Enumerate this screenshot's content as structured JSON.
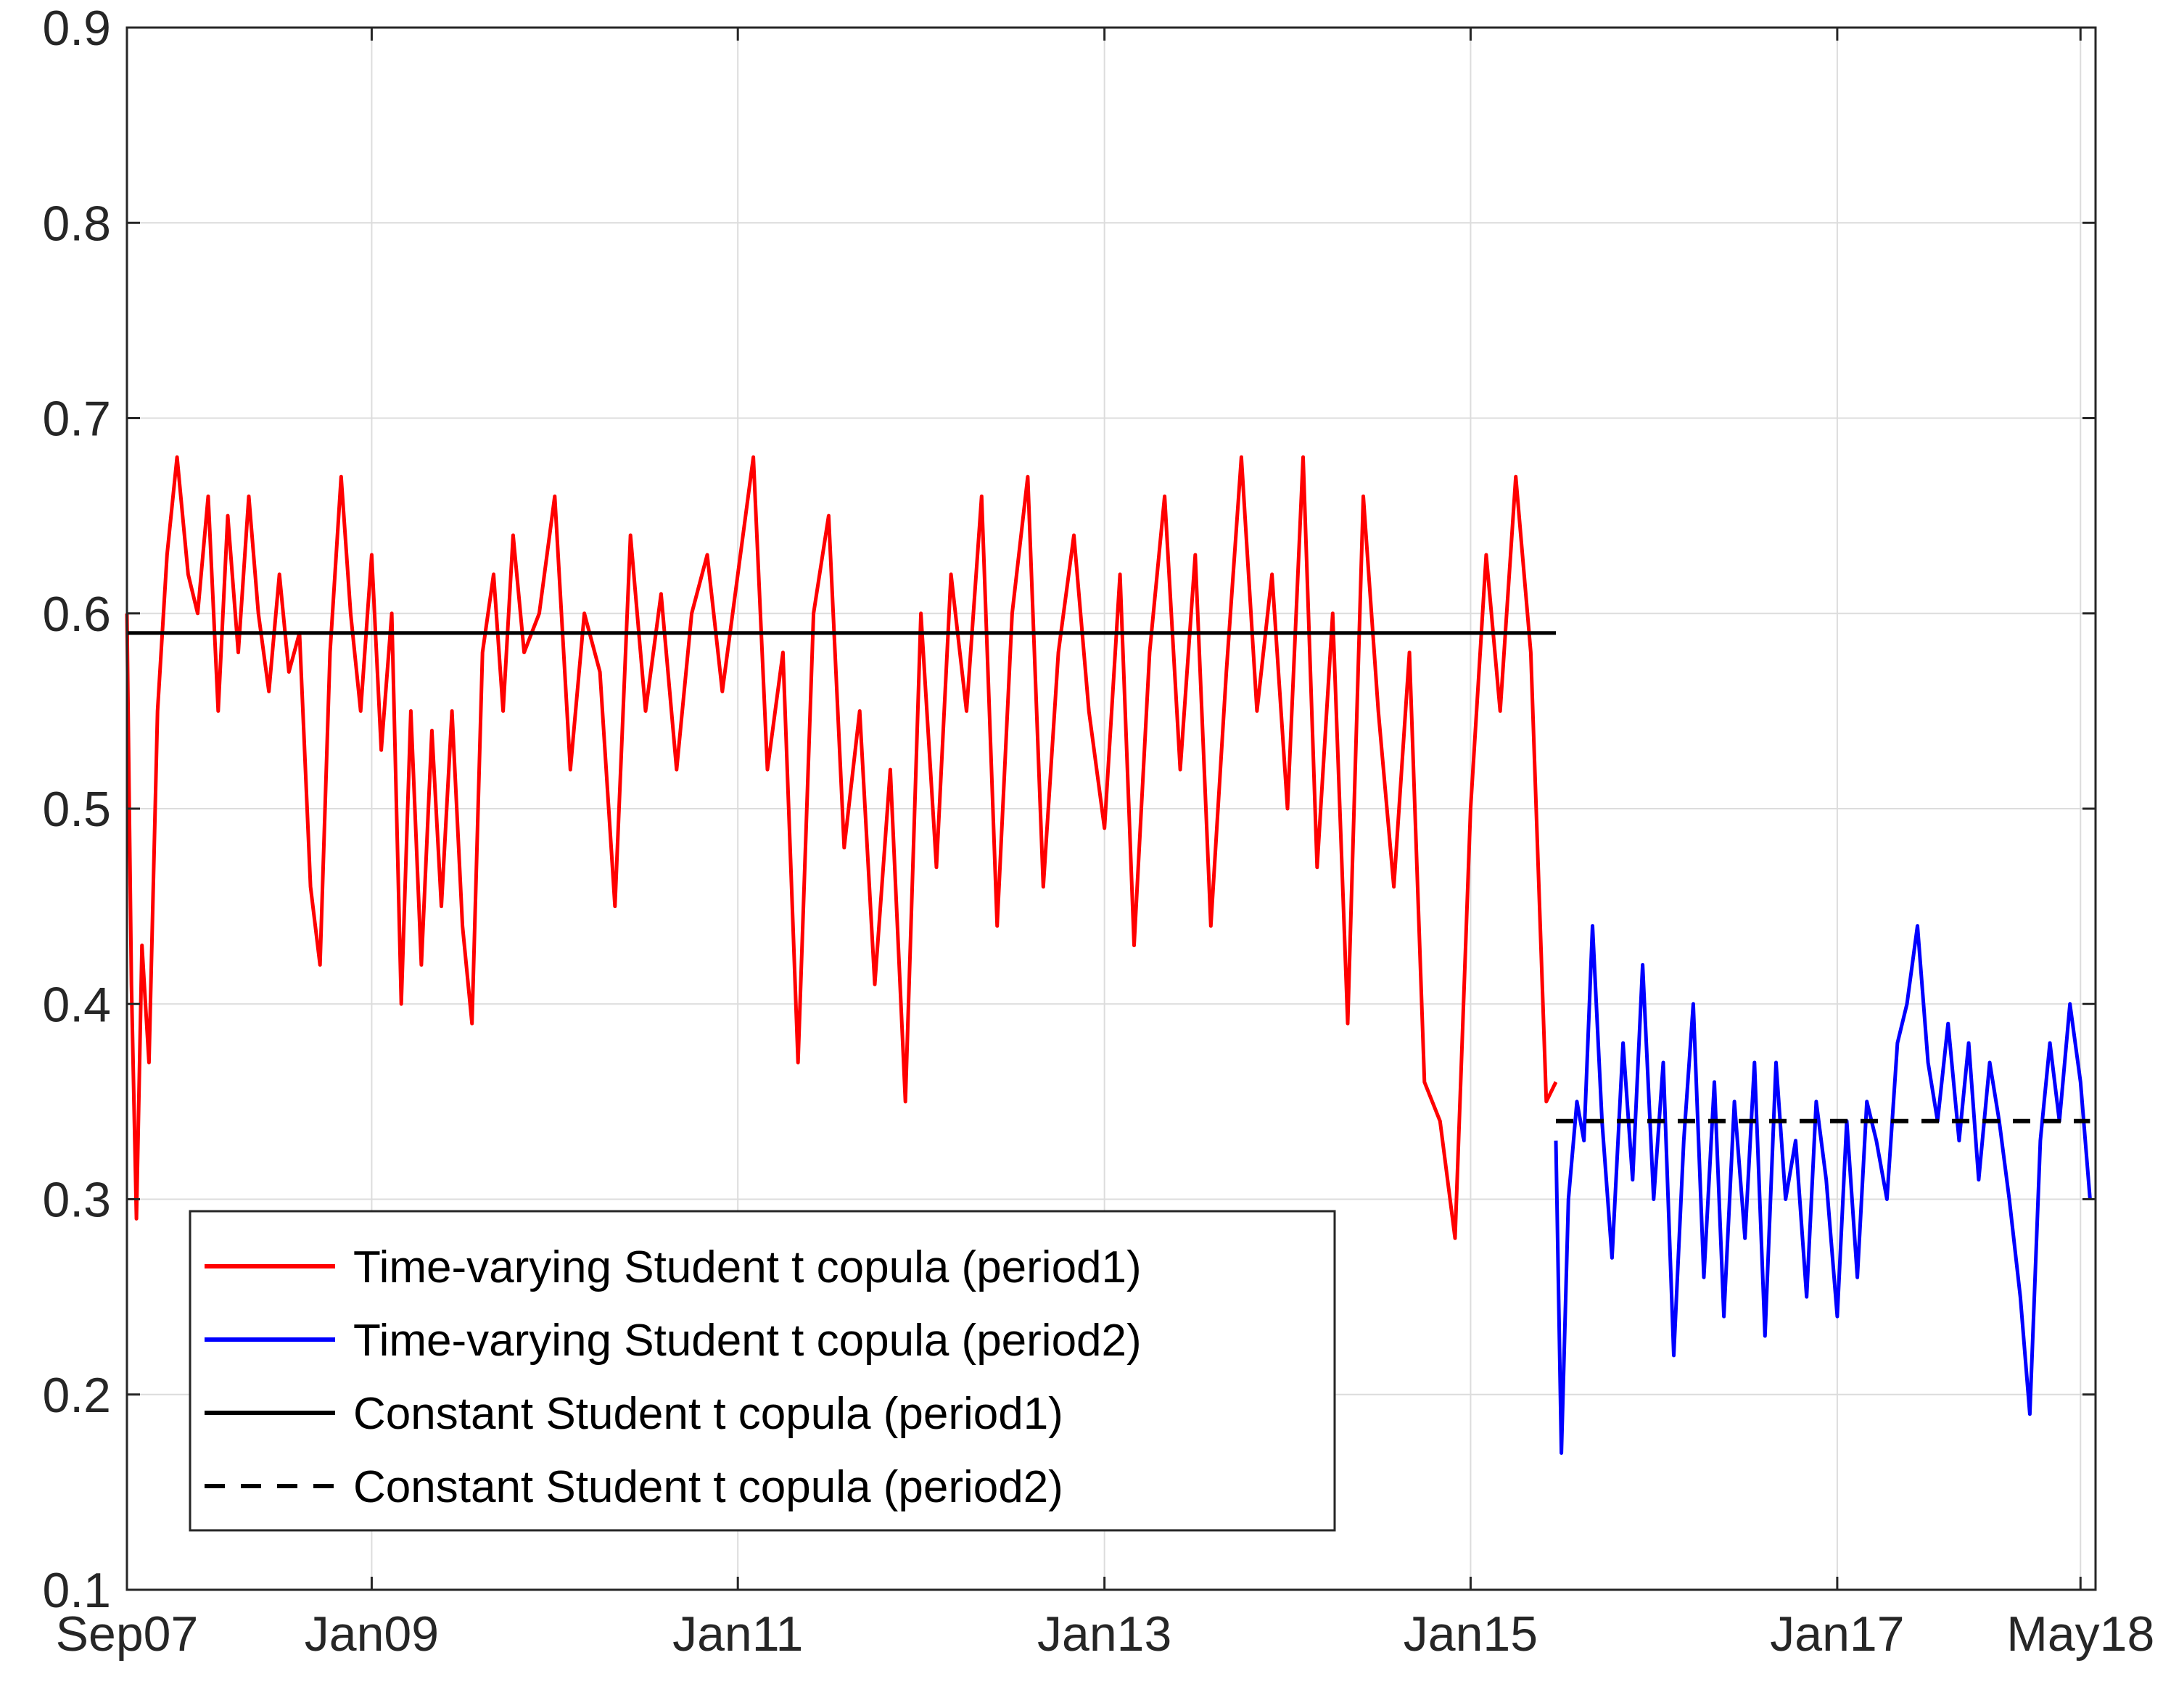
{
  "chart_data": {
    "type": "line",
    "title": "",
    "xlabel": "",
    "ylabel": "",
    "xlim": [
      "2007-09-01",
      "2018-05-31"
    ],
    "ylim": [
      0.1,
      0.9
    ],
    "grid": true,
    "legend_position": "bottom-left",
    "x_ticks": [
      {
        "date": "2007-09-01",
        "label": "Sep07"
      },
      {
        "date": "2009-01-01",
        "label": "Jan09"
      },
      {
        "date": "2011-01-01",
        "label": "Jan11"
      },
      {
        "date": "2013-01-01",
        "label": "Jan13"
      },
      {
        "date": "2015-01-01",
        "label": "Jan15"
      },
      {
        "date": "2017-01-01",
        "label": "Jan17"
      },
      {
        "date": "2018-05-01",
        "label": "May18"
      }
    ],
    "y_ticks": [
      {
        "value": 0.1,
        "label": "0.1"
      },
      {
        "value": 0.2,
        "label": "0.2"
      },
      {
        "value": 0.3,
        "label": "0.3"
      },
      {
        "value": 0.4,
        "label": "0.4"
      },
      {
        "value": 0.5,
        "label": "0.5"
      },
      {
        "value": 0.6,
        "label": "0.6"
      },
      {
        "value": 0.7,
        "label": "0.7"
      },
      {
        "value": 0.8,
        "label": "0.8"
      },
      {
        "value": 0.9,
        "label": "0.9"
      }
    ],
    "series": [
      {
        "name": "Time-varying Student t copula (period1)",
        "color": "#ff0000",
        "style": "solid",
        "x": [
          "2007-09-01",
          "2007-09-10",
          "2007-09-20",
          "2007-10-01",
          "2007-10-15",
          "2007-11-01",
          "2007-11-20",
          "2007-12-10",
          "2008-01-01",
          "2008-01-20",
          "2008-02-10",
          "2008-03-01",
          "2008-03-20",
          "2008-04-10",
          "2008-05-01",
          "2008-05-20",
          "2008-06-10",
          "2008-07-01",
          "2008-07-20",
          "2008-08-10",
          "2008-09-01",
          "2008-09-20",
          "2008-10-10",
          "2008-11-01",
          "2008-11-20",
          "2008-12-10",
          "2009-01-01",
          "2009-01-20",
          "2009-02-10",
          "2009-03-01",
          "2009-03-20",
          "2009-04-10",
          "2009-05-01",
          "2009-05-20",
          "2009-06-10",
          "2009-07-01",
          "2009-07-20",
          "2009-08-10",
          "2009-09-01",
          "2009-09-20",
          "2009-10-10",
          "2009-11-01",
          "2009-12-01",
          "2010-01-01",
          "2010-02-01",
          "2010-03-01",
          "2010-04-01",
          "2010-05-01",
          "2010-06-01",
          "2010-07-01",
          "2010-08-01",
          "2010-09-01",
          "2010-10-01",
          "2010-11-01",
          "2010-12-01",
          "2011-01-01",
          "2011-02-01",
          "2011-03-01",
          "2011-04-01",
          "2011-05-01",
          "2011-06-01",
          "2011-07-01",
          "2011-08-01",
          "2011-09-01",
          "2011-10-01",
          "2011-11-01",
          "2011-12-01",
          "2012-01-01",
          "2012-02-01",
          "2012-03-01",
          "2012-04-01",
          "2012-05-01",
          "2012-06-01",
          "2012-07-01",
          "2012-08-01",
          "2012-09-01",
          "2012-10-01",
          "2012-11-01",
          "2012-12-01",
          "2013-01-01",
          "2013-02-01",
          "2013-03-01",
          "2013-04-01",
          "2013-05-01",
          "2013-06-01",
          "2013-07-01",
          "2013-08-01",
          "2013-09-01",
          "2013-10-01",
          "2013-11-01",
          "2013-12-01",
          "2014-01-01",
          "2014-02-01",
          "2014-03-01",
          "2014-04-01",
          "2014-05-01",
          "2014-06-01",
          "2014-07-01",
          "2014-08-01",
          "2014-09-01",
          "2014-10-01",
          "2014-11-01",
          "2014-12-01",
          "2015-01-01",
          "2015-02-01",
          "2015-03-01",
          "2015-04-01",
          "2015-05-01",
          "2015-06-01",
          "2015-06-20"
        ],
        "values": [
          0.6,
          0.41,
          0.29,
          0.43,
          0.37,
          0.55,
          0.63,
          0.68,
          0.62,
          0.6,
          0.66,
          0.55,
          0.65,
          0.58,
          0.66,
          0.6,
          0.56,
          0.62,
          0.57,
          0.59,
          0.46,
          0.42,
          0.58,
          0.67,
          0.6,
          0.55,
          0.63,
          0.53,
          0.6,
          0.4,
          0.55,
          0.42,
          0.54,
          0.45,
          0.55,
          0.44,
          0.39,
          0.58,
          0.62,
          0.55,
          0.64,
          0.58,
          0.6,
          0.66,
          0.52,
          0.6,
          0.57,
          0.45,
          0.64,
          0.55,
          0.61,
          0.52,
          0.6,
          0.63,
          0.56,
          0.62,
          0.68,
          0.52,
          0.58,
          0.37,
          0.6,
          0.65,
          0.48,
          0.55,
          0.41,
          0.52,
          0.35,
          0.6,
          0.47,
          0.62,
          0.55,
          0.66,
          0.44,
          0.6,
          0.67,
          0.46,
          0.58,
          0.64,
          0.55,
          0.49,
          0.62,
          0.43,
          0.58,
          0.66,
          0.52,
          0.63,
          0.44,
          0.57,
          0.68,
          0.55,
          0.62,
          0.5,
          0.68,
          0.47,
          0.6,
          0.39,
          0.66,
          0.55,
          0.46,
          0.58,
          0.36,
          0.34,
          0.28,
          0.5,
          0.63,
          0.55,
          0.67,
          0.58,
          0.35,
          0.36
        ]
      },
      {
        "name": "Time-varying Student t copula (period2)",
        "color": "#0000ff",
        "style": "solid",
        "x": [
          "2015-06-20",
          "2015-07-01",
          "2015-07-15",
          "2015-08-01",
          "2015-08-15",
          "2015-09-01",
          "2015-09-20",
          "2015-10-10",
          "2015-11-01",
          "2015-11-20",
          "2015-12-10",
          "2016-01-01",
          "2016-01-20",
          "2016-02-10",
          "2016-03-01",
          "2016-03-20",
          "2016-04-10",
          "2016-05-01",
          "2016-05-20",
          "2016-06-10",
          "2016-07-01",
          "2016-07-20",
          "2016-08-10",
          "2016-09-01",
          "2016-09-20",
          "2016-10-10",
          "2016-11-01",
          "2016-11-20",
          "2016-12-10",
          "2017-01-01",
          "2017-01-20",
          "2017-02-10",
          "2017-03-01",
          "2017-03-20",
          "2017-04-10",
          "2017-05-01",
          "2017-05-20",
          "2017-06-10",
          "2017-07-01",
          "2017-07-20",
          "2017-08-10",
          "2017-09-01",
          "2017-09-20",
          "2017-10-10",
          "2017-11-01",
          "2017-11-20",
          "2017-12-10",
          "2018-01-01",
          "2018-01-20",
          "2018-02-10",
          "2018-03-01",
          "2018-03-20",
          "2018-04-10",
          "2018-05-01",
          "2018-05-20"
        ],
        "values": [
          0.33,
          0.17,
          0.3,
          0.35,
          0.33,
          0.44,
          0.34,
          0.27,
          0.38,
          0.31,
          0.42,
          0.3,
          0.37,
          0.22,
          0.33,
          0.4,
          0.26,
          0.36,
          0.24,
          0.35,
          0.28,
          0.37,
          0.23,
          0.37,
          0.3,
          0.33,
          0.25,
          0.35,
          0.31,
          0.24,
          0.34,
          0.26,
          0.35,
          0.33,
          0.3,
          0.38,
          0.4,
          0.44,
          0.37,
          0.34,
          0.39,
          0.33,
          0.38,
          0.31,
          0.37,
          0.34,
          0.3,
          0.25,
          0.19,
          0.33,
          0.38,
          0.34,
          0.4,
          0.36,
          0.3
        ]
      },
      {
        "name": "Constant Student t copula (period1)",
        "color": "#000000",
        "style": "solid",
        "x": [
          "2007-09-01",
          "2015-06-20"
        ],
        "values": [
          0.59,
          0.59
        ]
      },
      {
        "name": "Constant Student t copula (period2)",
        "color": "#000000",
        "style": "dashed",
        "x": [
          "2015-06-20",
          "2018-05-20"
        ],
        "values": [
          0.34,
          0.34
        ]
      }
    ]
  }
}
